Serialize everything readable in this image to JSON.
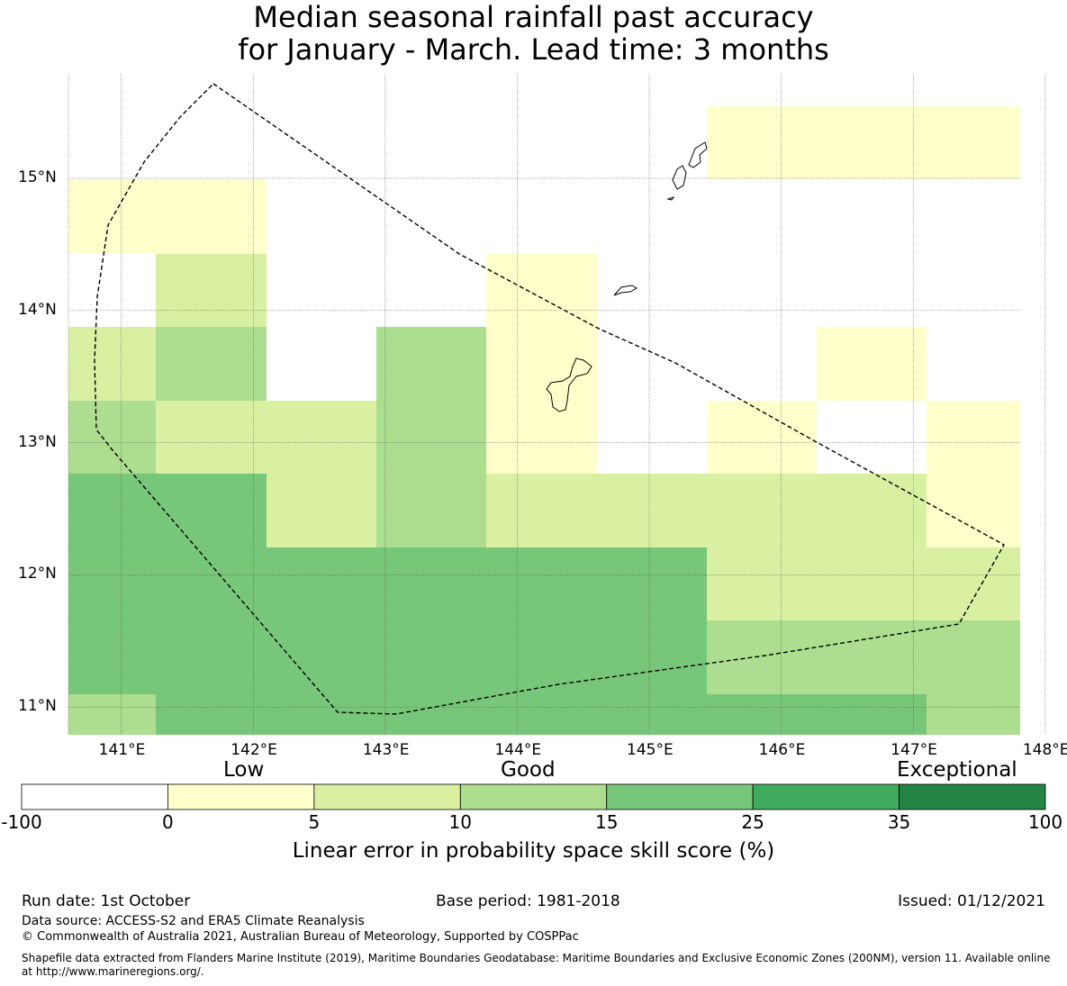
{
  "title": {
    "line1": "Median seasonal rainfall past accuracy",
    "line2": "for January - March. Lead time: 3 months"
  },
  "map": {
    "lon_ticks": [
      "141°E",
      "142°E",
      "143°E",
      "144°E",
      "145°E",
      "146°E",
      "147°E",
      "148°E"
    ],
    "lat_ticks": [
      "15°N",
      "14°N",
      "13°N",
      "12°N",
      "11°N"
    ],
    "lon_values": [
      141,
      142,
      143,
      144,
      145,
      146,
      147,
      148
    ],
    "lat_values": [
      15,
      14,
      13,
      12,
      11
    ],
    "cell_class_colors": [
      "#ffffff",
      "#ffffcc",
      "#d9f0a3",
      "#addd8e",
      "#78c679",
      "#41ab5d",
      "#238443"
    ],
    "grid_rows_north_to_south": [
      [
        null,
        null,
        null,
        null,
        null,
        null,
        1,
        1,
        1
      ],
      [
        1,
        1,
        null,
        null,
        null,
        0,
        null,
        null,
        null
      ],
      [
        0,
        2,
        null,
        null,
        1,
        null,
        null,
        null,
        null
      ],
      [
        2,
        3,
        null,
        3,
        1,
        null,
        null,
        1,
        null
      ],
      [
        3,
        2,
        2,
        3,
        1,
        0,
        1,
        0,
        1
      ],
      [
        4,
        4,
        2,
        3,
        2,
        2,
        2,
        2,
        1
      ],
      [
        4,
        4,
        4,
        4,
        4,
        4,
        2,
        2,
        2
      ],
      [
        4,
        4,
        4,
        4,
        4,
        4,
        3,
        3,
        3
      ],
      [
        3,
        4,
        4,
        4,
        4,
        4,
        4,
        4,
        3
      ]
    ]
  },
  "colorbar": {
    "categories": [
      "Low",
      "Good",
      "Exceptional"
    ],
    "boundaries": [
      "-100",
      "0",
      "5",
      "10",
      "15",
      "25",
      "35",
      "100"
    ],
    "colors": [
      "#ffffff",
      "#ffffcc",
      "#d9f0a3",
      "#addd8e",
      "#78c679",
      "#41ab5d",
      "#238443"
    ],
    "label": "Linear error in probability space skill score (%)"
  },
  "footer": {
    "run_date": "Run date: 1st October",
    "base_period": "Base period: 1981-2018",
    "issued": "Issued: 01/12/2021",
    "data_source": "Data source: ACCESS-S2 and ERA5 Climate Reanalysis",
    "copyright": "© Commonwealth of Australia 2021, Australian Bureau of Meteorology, Supported by COSPPac",
    "shapefile_line1": "Shapefile data extracted from Flanders Marine Institute (2019), Maritime Boundaries Geodatabase: Maritime Boundaries and Exclusive Economic Zones (200NM), version 11. Available online",
    "shapefile_line2": "at http://www.marineregions.org/."
  }
}
